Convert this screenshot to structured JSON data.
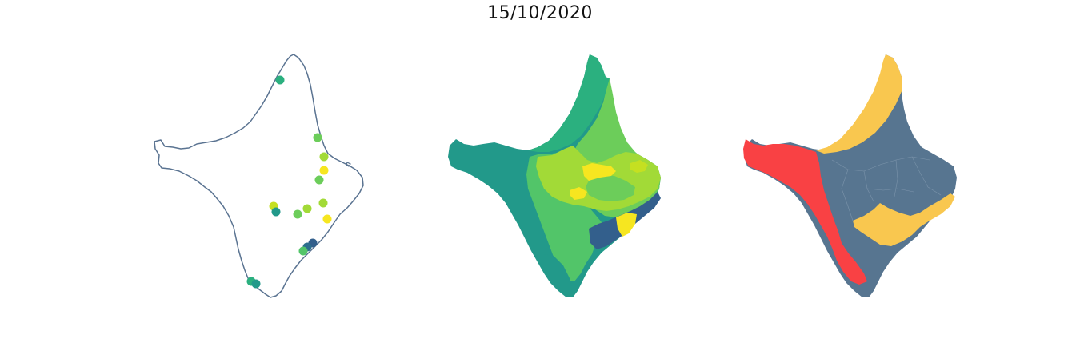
{
  "figure": {
    "title": "15/10/2020"
  },
  "palette": {
    "outline": "#5a7391",
    "viridis_dark_blue": "#335f8c",
    "viridis_teal": "#22998a",
    "viridis_green_teal": "#2bb07f",
    "viridis_green": "#52c569",
    "viridis_light_green": "#6ccd5a",
    "viridis_lime": "#a2da37",
    "viridis_yellow_green": "#c5e021",
    "viridis_yellow": "#f6e620",
    "category_slate": "#577590",
    "category_gold": "#f9c74f",
    "category_red": "#f94144"
  },
  "panels": [
    {
      "name": "point-map",
      "kind": "scatter over outline"
    },
    {
      "name": "choropleth-viridis",
      "kind": "choropleth"
    },
    {
      "name": "choropleth-categorical",
      "kind": "choropleth"
    }
  ],
  "points": [
    {
      "color": "#2bb07f"
    },
    {
      "color": "#6ccd5a"
    },
    {
      "color": "#a2da37"
    },
    {
      "color": "#f6e620"
    },
    {
      "color": "#6ccd5a"
    },
    {
      "color": "#c5e021"
    },
    {
      "color": "#22998a"
    },
    {
      "color": "#6ccd5a"
    },
    {
      "color": "#a2da37"
    },
    {
      "color": "#a2da37"
    },
    {
      "color": "#f6e620"
    },
    {
      "color": "#335f8c"
    },
    {
      "color": "#2d6f8e"
    },
    {
      "color": "#52c569"
    },
    {
      "color": "#2bb07f"
    },
    {
      "color": "#22998a"
    }
  ]
}
